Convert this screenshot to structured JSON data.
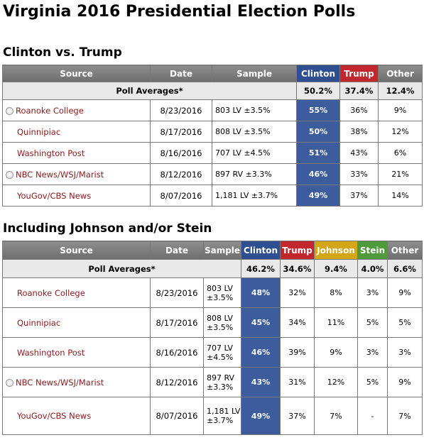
{
  "page_title": "Virginia 2016 Presidential Election Polls",
  "sections": [
    {
      "title": "Clinton vs. Trump",
      "headers": [
        "Source",
        "Date",
        "Sample",
        "Clinton",
        "Trump",
        "Other"
      ],
      "averages_label": "Poll Averages*",
      "averages": [
        "50.2%",
        "37.4%",
        "12.4%"
      ],
      "rows": [
        {
          "source": "Roanoke College",
          "marker": true,
          "date": "8/23/2016",
          "sample": "803 LV ±3.5%",
          "values": [
            "55%",
            "36%",
            "9%"
          ]
        },
        {
          "source": "Quinnipiac",
          "marker": false,
          "date": "8/17/2016",
          "sample": "808 LV ±3.5%",
          "values": [
            "50%",
            "38%",
            "12%"
          ]
        },
        {
          "source": "Washington Post",
          "marker": false,
          "date": "8/16/2016",
          "sample": "707 LV ±4.5%",
          "values": [
            "51%",
            "43%",
            "6%"
          ]
        },
        {
          "source": "NBC News/WSJ/Marist",
          "marker": true,
          "date": "8/12/2016",
          "sample": "897 RV ±3.3%",
          "values": [
            "46%",
            "33%",
            "21%"
          ]
        },
        {
          "source": "YouGov/CBS News",
          "marker": false,
          "date": "8/07/2016",
          "sample": "1,181 LV ±3.7%",
          "values": [
            "49%",
            "37%",
            "14%"
          ]
        }
      ]
    },
    {
      "title": "Including Johnson and/or Stein",
      "headers": [
        "Source",
        "Date",
        "Sample",
        "Clinton",
        "Trump",
        "Johnson",
        "Stein",
        "Other"
      ],
      "averages_label": "Poll Averages*",
      "averages": [
        "46.2%",
        "34.6%",
        "9.4%",
        "4.0%",
        "6.6%"
      ],
      "rows": [
        {
          "source": "Roanoke College",
          "marker": false,
          "date": "8/23/2016",
          "sample": "803 LV ±3.5%",
          "values": [
            "48%",
            "32%",
            "8%",
            "3%",
            "9%"
          ]
        },
        {
          "source": "Quinnipiac",
          "marker": false,
          "date": "8/17/2016",
          "sample": "808 LV ±3.5%",
          "values": [
            "45%",
            "34%",
            "11%",
            "5%",
            "5%"
          ]
        },
        {
          "source": "Washington Post",
          "marker": false,
          "date": "8/16/2016",
          "sample": "707 LV ±4.5%",
          "values": [
            "46%",
            "39%",
            "9%",
            "3%",
            "3%"
          ]
        },
        {
          "source": "NBC News/WSJ/Marist",
          "marker": true,
          "date": "8/12/2016",
          "sample": "897 RV ±3.3%",
          "values": [
            "43%",
            "31%",
            "12%",
            "5%",
            "9%"
          ]
        },
        {
          "source": "YouGov/CBS News",
          "marker": false,
          "date": "8/07/2016",
          "sample": "1,181 LV ±3.7%",
          "values": [
            "49%",
            "37%",
            "7%",
            "-",
            "7%"
          ]
        }
      ]
    }
  ],
  "colors": {
    "clinton": "#2f4f93",
    "trump": "#c2272d",
    "johnson": "#d4a615",
    "stein": "#4f9a3a",
    "header_gray": "#7d7d7d",
    "source_link": "#8b1a1a"
  }
}
